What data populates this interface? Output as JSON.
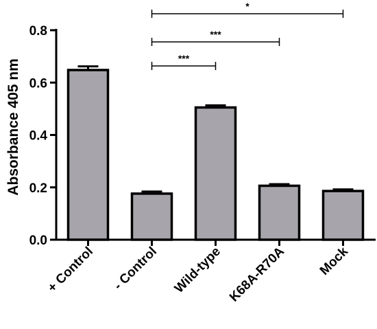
{
  "chart_data": {
    "type": "bar",
    "title": "",
    "xlabel": "",
    "ylabel": "Absorbance 405 nm",
    "ylim": [
      0,
      0.8
    ],
    "yticks": [
      0.0,
      0.2,
      0.4,
      0.6,
      0.8
    ],
    "ytick_labels": [
      "0.0",
      "0.2",
      "0.4",
      "0.6",
      "0.8"
    ],
    "grid": false,
    "legend": "none",
    "categories": [
      "+ Control",
      "- Control",
      "Wild-type",
      "K68A-R70A",
      "Mock"
    ],
    "values": [
      0.648,
      0.176,
      0.505,
      0.206,
      0.186
    ],
    "errors": [
      0.014,
      0.008,
      0.008,
      0.006,
      0.006
    ],
    "bar_color": "#a7a5ab",
    "edge_color": "#000000",
    "significance": [
      {
        "from": "- Control",
        "to": "Wild-type",
        "label": "***"
      },
      {
        "from": "- Control",
        "to": "K68A-R70A",
        "label": "***"
      },
      {
        "from": "- Control",
        "to": "Mock",
        "label": "*"
      }
    ]
  }
}
